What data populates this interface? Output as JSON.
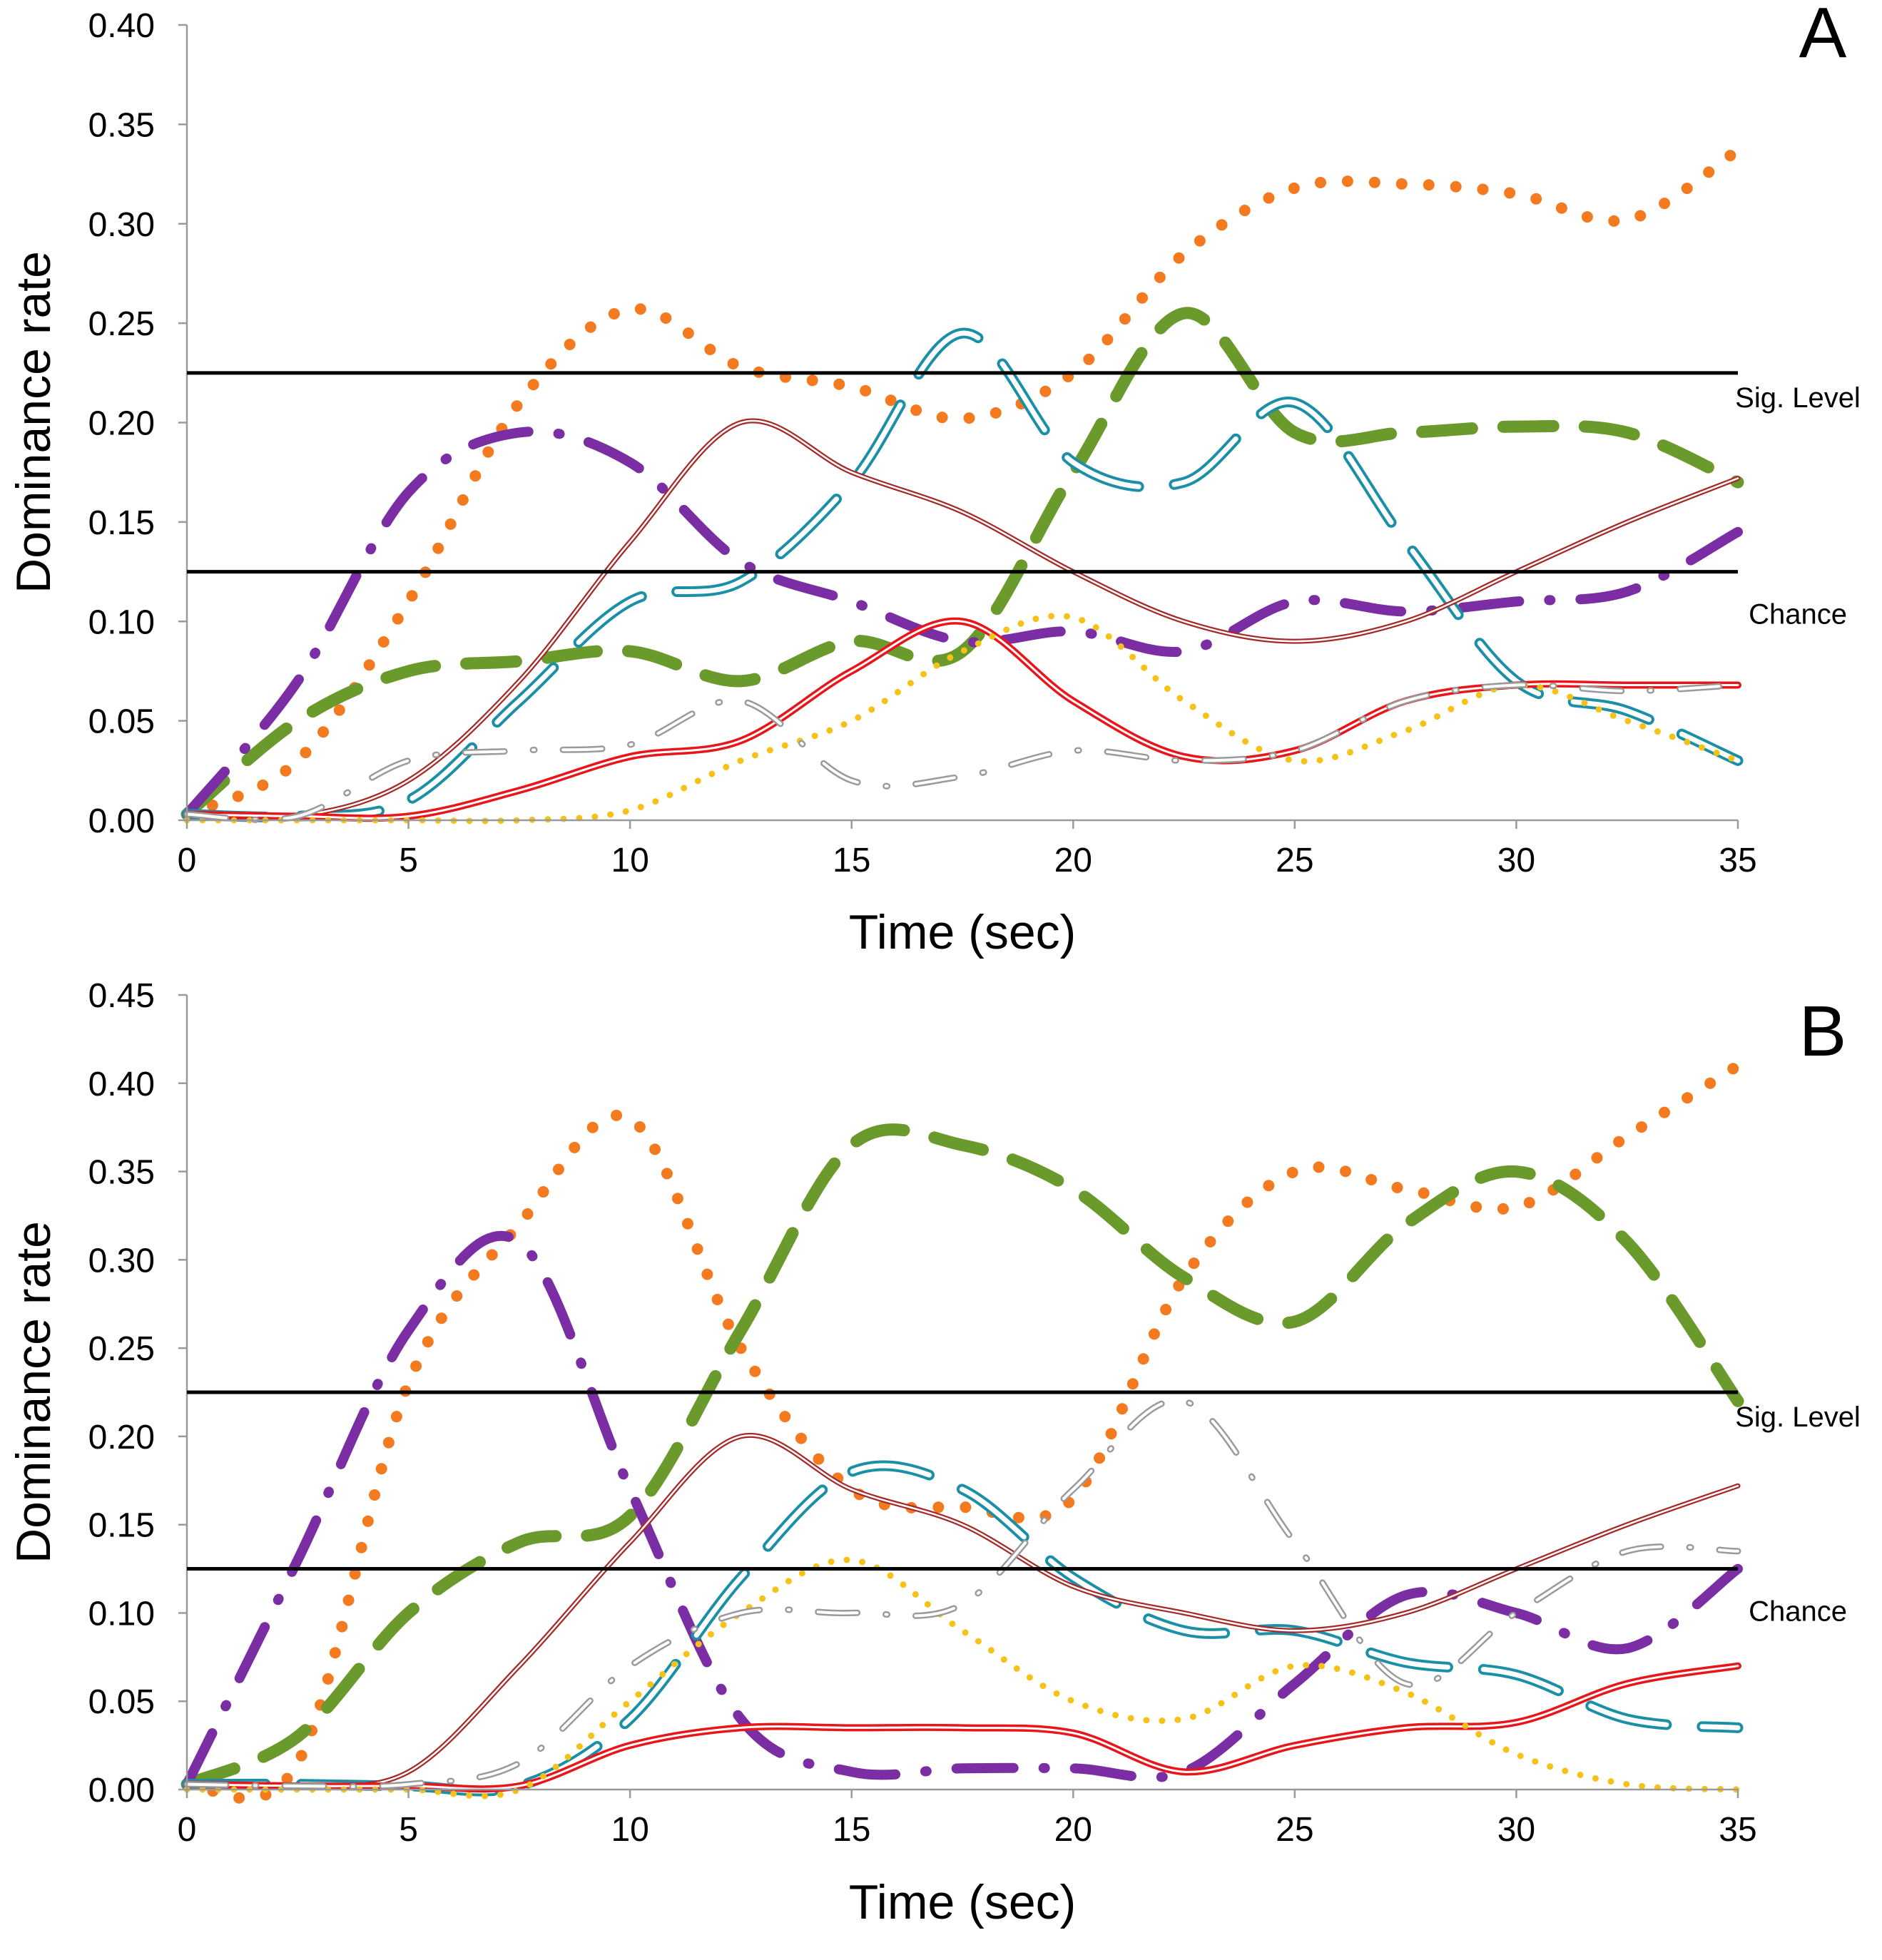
{
  "chart_data": [
    {
      "type": "line",
      "panel_label": "A",
      "xlabel": "Time (sec)",
      "ylabel": "Dominance rate",
      "xlim": [
        0,
        35
      ],
      "ylim": [
        0,
        0.4
      ],
      "xticks": [
        "0",
        "5",
        "10",
        "15",
        "20",
        "25",
        "30",
        "35"
      ],
      "yticks": [
        "0.00",
        "0.05",
        "0.10",
        "0.15",
        "0.20",
        "0.25",
        "0.30",
        "0.35",
        "0.40"
      ],
      "x": [
        0,
        2.5,
        5,
        7.5,
        10,
        12.5,
        15,
        17.5,
        20,
        22.5,
        25,
        27.5,
        30,
        32.5,
        35
      ],
      "reference_lines": [
        {
          "label": "Sig. Level",
          "y": 0.225
        },
        {
          "label": "Chance",
          "y": 0.125
        }
      ],
      "series": [
        {
          "name": "orange-dotted",
          "color": "#f47a20",
          "values": [
            0.003,
            0.03,
            0.11,
            0.21,
            0.257,
            0.228,
            0.218,
            0.202,
            0.225,
            0.285,
            0.318,
            0.32,
            0.315,
            0.302,
            0.337
          ]
        },
        {
          "name": "green-dashed",
          "color": "#6b9a2c",
          "values": [
            0.003,
            0.05,
            0.075,
            0.08,
            0.085,
            0.07,
            0.09,
            0.085,
            0.175,
            0.255,
            0.195,
            0.195,
            0.198,
            0.195,
            0.17
          ]
        },
        {
          "name": "purple-dashdot",
          "color": "#7b2ea3",
          "values": [
            0.003,
            0.07,
            0.165,
            0.195,
            0.18,
            0.13,
            0.11,
            0.09,
            0.095,
            0.085,
            0.11,
            0.105,
            0.11,
            0.115,
            0.145
          ]
        },
        {
          "name": "teal-longdash",
          "color": "#1b8fa5",
          "values": [
            0.003,
            0.002,
            0.01,
            0.06,
            0.11,
            0.12,
            0.17,
            0.245,
            0.18,
            0.17,
            0.21,
            0.14,
            0.07,
            0.055,
            0.03
          ]
        },
        {
          "name": "brown-double",
          "color": "#a42a2a",
          "values": [
            0.003,
            0.002,
            0.02,
            0.07,
            0.14,
            0.2,
            0.175,
            0.155,
            0.125,
            0.1,
            0.09,
            0.1,
            0.125,
            0.15,
            0.172
          ]
        },
        {
          "name": "red-double",
          "color": "#e8161b",
          "values": [
            0.003,
            0.002,
            0.002,
            0.015,
            0.032,
            0.04,
            0.075,
            0.1,
            0.06,
            0.032,
            0.035,
            0.06,
            0.068,
            0.068,
            0.068
          ]
        },
        {
          "name": "yellow-dotted",
          "color": "#f6c21a",
          "values": [
            0.0,
            0.0,
            0.0,
            0.0,
            0.005,
            0.03,
            0.05,
            0.085,
            0.102,
            0.06,
            0.03,
            0.045,
            0.068,
            0.05,
            0.03
          ]
        },
        {
          "name": "gray-dashdot",
          "color": "#9a9a9a",
          "values": [
            0.003,
            0.002,
            0.03,
            0.035,
            0.038,
            0.06,
            0.02,
            0.022,
            0.035,
            0.03,
            0.035,
            0.06,
            0.068,
            0.065,
            0.068
          ]
        }
      ]
    },
    {
      "type": "line",
      "panel_label": "B",
      "xlabel": "Time (sec)",
      "ylabel": "Dominance rate",
      "xlim": [
        0,
        35
      ],
      "ylim": [
        0,
        0.45
      ],
      "xticks": [
        "0",
        "5",
        "10",
        "15",
        "20",
        "25",
        "30",
        "35"
      ],
      "yticks": [
        "0.00",
        "0.05",
        "0.10",
        "0.15",
        "0.20",
        "0.25",
        "0.30",
        "0.35",
        "0.40",
        "0.45"
      ],
      "x": [
        0,
        2.5,
        5,
        7.5,
        10,
        12.5,
        15,
        17.5,
        20,
        22.5,
        25,
        27.5,
        30,
        32.5,
        35
      ],
      "reference_lines": [
        {
          "label": "Sig. Level",
          "y": 0.225
        },
        {
          "label": "Chance",
          "y": 0.125
        }
      ],
      "series": [
        {
          "name": "orange-dotted",
          "color": "#f47a20",
          "values": [
            0.003,
            0.015,
            0.23,
            0.32,
            0.38,
            0.25,
            0.17,
            0.16,
            0.165,
            0.29,
            0.35,
            0.34,
            0.33,
            0.37,
            0.41
          ]
        },
        {
          "name": "green-dashed",
          "color": "#6b9a2c",
          "values": [
            0.003,
            0.03,
            0.1,
            0.14,
            0.155,
            0.26,
            0.365,
            0.365,
            0.34,
            0.29,
            0.265,
            0.32,
            0.35,
            0.31,
            0.22
          ]
        },
        {
          "name": "purple-dashdot",
          "color": "#7b2ea3",
          "values": [
            0.003,
            0.13,
            0.26,
            0.31,
            0.17,
            0.04,
            0.01,
            0.012,
            0.012,
            0.01,
            0.06,
            0.11,
            0.1,
            0.08,
            0.125
          ]
        },
        {
          "name": "teal-longdash",
          "color": "#1b8fa5",
          "values": [
            0.003,
            0.003,
            0.002,
            0.002,
            0.04,
            0.12,
            0.18,
            0.17,
            0.12,
            0.09,
            0.09,
            0.072,
            0.065,
            0.04,
            0.035
          ]
        },
        {
          "name": "brown-double",
          "color": "#a42a2a",
          "values": [
            0.003,
            0.002,
            0.01,
            0.07,
            0.14,
            0.2,
            0.17,
            0.15,
            0.115,
            0.1,
            0.09,
            0.1,
            0.125,
            0.15,
            0.172
          ]
        },
        {
          "name": "red-double",
          "color": "#e8161b",
          "values": [
            0.003,
            0.002,
            0.002,
            0.002,
            0.025,
            0.035,
            0.035,
            0.035,
            0.032,
            0.01,
            0.025,
            0.035,
            0.038,
            0.06,
            0.07
          ]
        },
        {
          "name": "yellow-dotted",
          "color": "#f6c21a",
          "values": [
            0.0,
            0.0,
            0.0,
            0.0,
            0.05,
            0.1,
            0.13,
            0.09,
            0.05,
            0.04,
            0.07,
            0.055,
            0.02,
            0.003,
            0.0
          ]
        },
        {
          "name": "gray-dashdot",
          "color": "#9a9a9a",
          "values": [
            0.003,
            0.002,
            0.003,
            0.015,
            0.07,
            0.1,
            0.1,
            0.105,
            0.17,
            0.22,
            0.14,
            0.06,
            0.1,
            0.135,
            0.135
          ]
        }
      ]
    }
  ]
}
